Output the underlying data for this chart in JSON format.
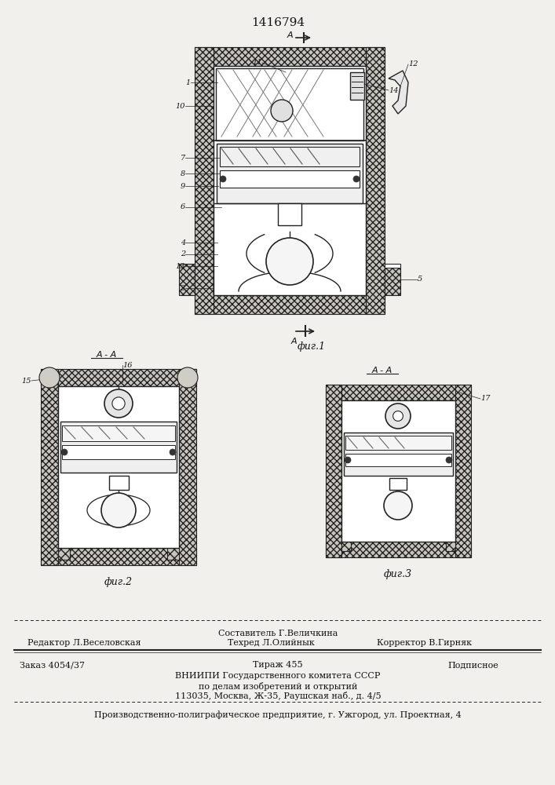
{
  "patent_number": "1416794",
  "fig1_label": "фиг.1",
  "fig2_label": "фиг.2",
  "fig3_label": "фиг.3",
  "bg_color": "#f2f0ec",
  "line_color": "#222222",
  "hatch_fc": "#c8c5be",
  "text_color": "#111111",
  "footer_sestavitel": "Составитель Г.Величкина",
  "footer_redaktor": "Редактор Л.Веселовская",
  "footer_tehred": "Техред Л.Олийнык",
  "footer_korrektor": "Корректор В.Гирняк",
  "footer_zakaz": "Заказ 4054/37",
  "footer_tirazh": "Тираж 455",
  "footer_podpisnoe": "Подписное",
  "footer_vniip1": "ВНИИПИ Государственного комитета СССР",
  "footer_vniip2": "по делам изобретений и открытий",
  "footer_vniip3": "113035, Москва, Ж-35, Раушская наб., д. 4/5",
  "footer_predpr": "Производственно-полиграфическое предприятие, г. Ужгород, ул. Проектная, 4"
}
